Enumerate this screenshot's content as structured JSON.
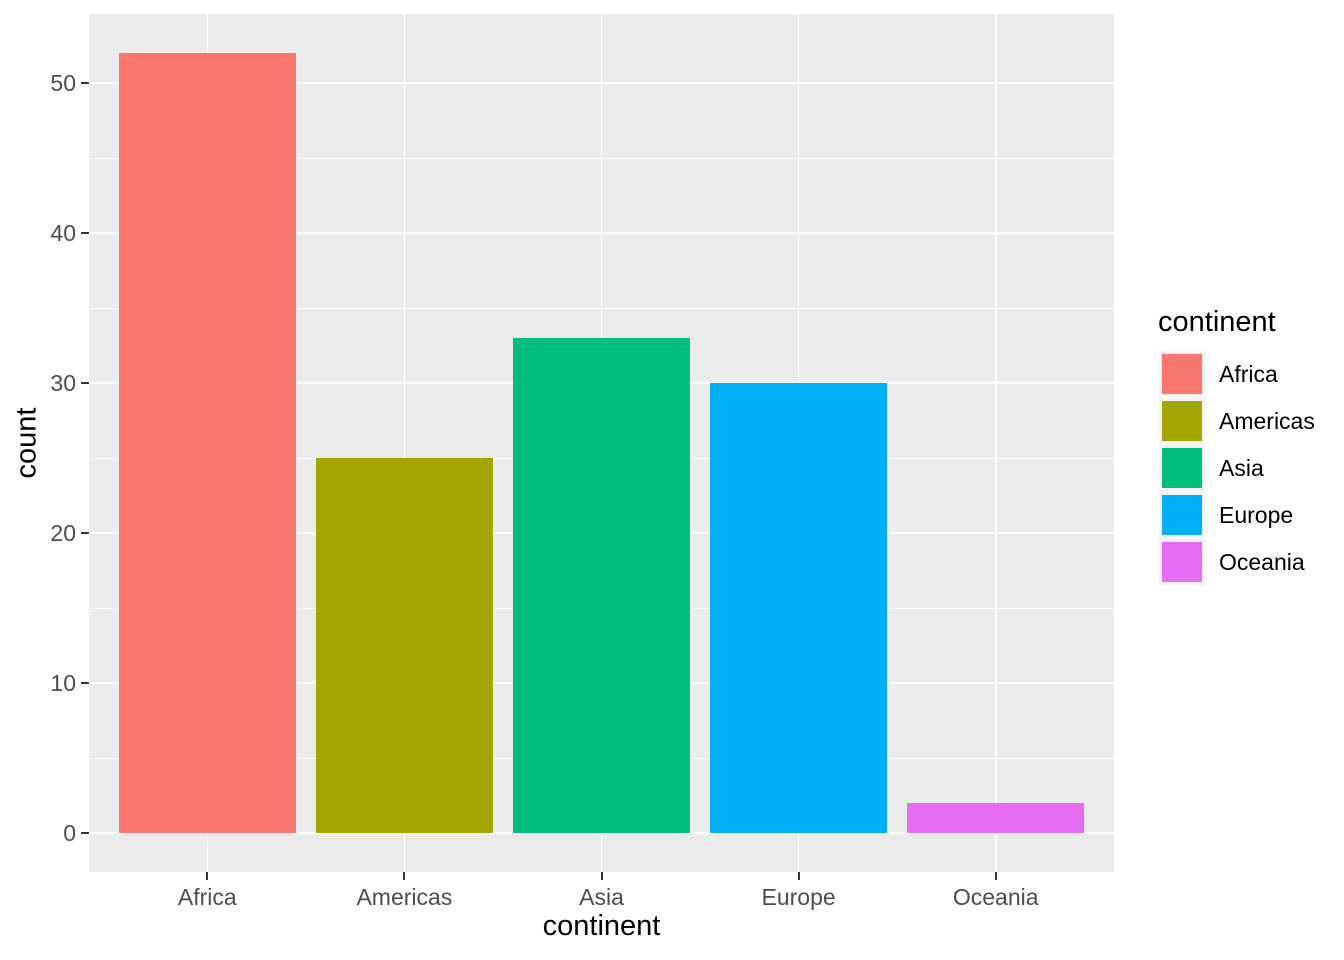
{
  "chart_data": {
    "type": "bar",
    "title": "",
    "xlabel": "continent",
    "ylabel": "count",
    "categories": [
      "Africa",
      "Americas",
      "Asia",
      "Europe",
      "Oceania"
    ],
    "values": [
      52,
      25,
      33,
      30,
      2
    ],
    "bar_colors": [
      "#F8766D",
      "#A3A500",
      "#00BF7D",
      "#00B0F6",
      "#E76BF3"
    ],
    "y_major_ticks": [
      0,
      10,
      20,
      30,
      40,
      50
    ],
    "y_minor_ticks": [
      5,
      15,
      25,
      35,
      45
    ],
    "ylim": [
      0,
      52
    ],
    "grid": "major+minor, white on grey panel",
    "legend": {
      "title": "continent",
      "position": "right",
      "entries": [
        {
          "label": "Africa",
          "color": "#F8766D"
        },
        {
          "label": "Americas",
          "color": "#A3A500"
        },
        {
          "label": "Asia",
          "color": "#00BF7D"
        },
        {
          "label": "Europe",
          "color": "#00B0F6"
        },
        {
          "label": "Oceania",
          "color": "#E76BF3"
        }
      ]
    },
    "theme": {
      "panel_bg": "#EBEBEB",
      "grid_color": "#FFFFFF",
      "tick_mark_color": "#333333",
      "tick_label_color": "#4D4D4D",
      "title_color": "#000000",
      "figure_bg": "#FFFFFF"
    }
  }
}
